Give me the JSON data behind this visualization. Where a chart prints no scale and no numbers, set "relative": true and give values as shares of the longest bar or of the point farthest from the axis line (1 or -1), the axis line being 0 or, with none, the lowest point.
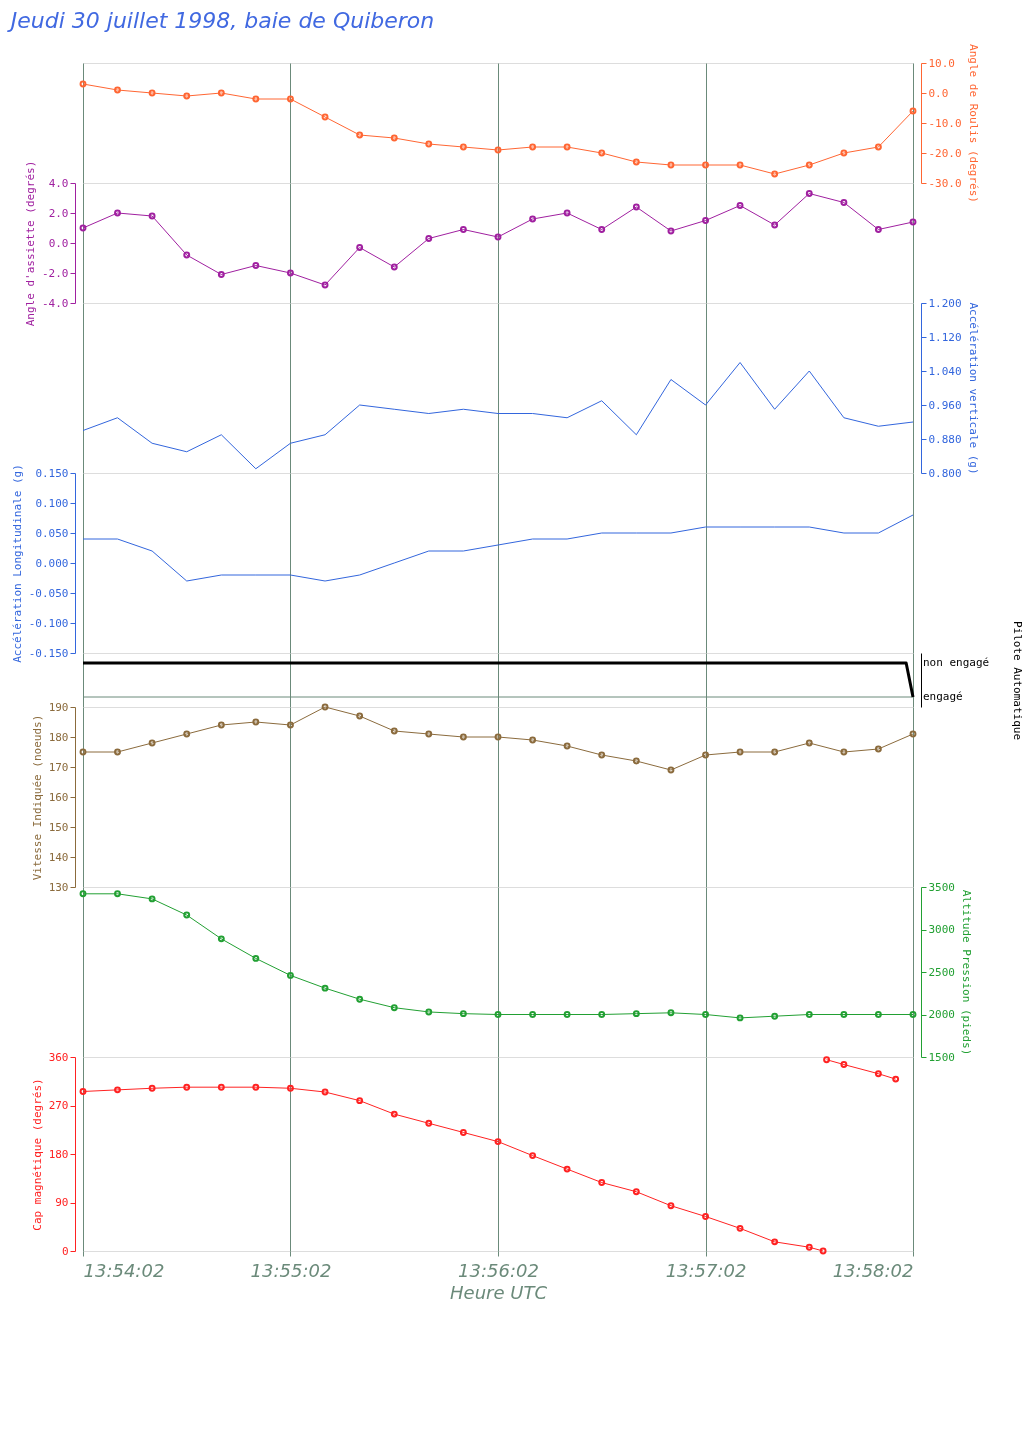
{
  "chart_data": [
    {
      "type": "line",
      "title": "Jeudi 30 juillet 1998, baie de Quiberon",
      "ylabel": "Angle de Roulis (degrés)",
      "marker": "circle",
      "grid": "x",
      "tick_labels": "y",
      "x": [
        13.90056,
        13.90333,
        13.90611,
        13.90889,
        13.91167,
        13.91444,
        13.91722,
        13.92,
        13.92278,
        13.92556,
        13.92833,
        13.93111,
        13.93389,
        13.93667,
        13.93944,
        13.94222,
        13.945,
        13.94778,
        13.95056,
        13.95333,
        13.95611,
        13.95889,
        13.96167,
        13.96444,
        13.96722
      ],
      "xlim": [
        13.90056,
        13.96722
      ],
      "xticks": [
        {
          "value": 13.90056,
          "label": null
        },
        {
          "value": 13.91722,
          "label": null
        },
        {
          "value": 13.93389,
          "label": null
        },
        {
          "value": 13.95056,
          "label": null
        },
        {
          "value": 13.96722,
          "label": null
        }
      ],
      "ylim": [
        -30,
        10
      ],
      "yticks": [
        {
          "value": 10,
          "label": "10.0"
        },
        {
          "value": 0,
          "label": "0.0"
        },
        {
          "value": -10,
          "label": "-10.0"
        },
        {
          "value": -20,
          "label": "-20.0"
        },
        {
          "value": -30,
          "label": "-30.0"
        }
      ],
      "series": [
        {
          "color": "#ff6633",
          "values": [
            3,
            1,
            0,
            -1,
            0,
            -2,
            -2,
            -8,
            -14,
            -15,
            -17,
            -18,
            -19,
            -18,
            -18,
            -20,
            -23,
            -24,
            -24,
            -24,
            -27,
            -24,
            -20,
            -18,
            -6
          ]
        }
      ]
    },
    {
      "type": "line",
      "ylabel": "Angle d'assiette (degrés)",
      "marker": "circle",
      "grid": "x",
      "tick_labels": "y",
      "x": [
        13.90056,
        13.90333,
        13.90611,
        13.90889,
        13.91167,
        13.91444,
        13.91722,
        13.92,
        13.92278,
        13.92556,
        13.92833,
        13.93111,
        13.93389,
        13.93667,
        13.93944,
        13.94222,
        13.945,
        13.94778,
        13.95056,
        13.95333,
        13.95611,
        13.95889,
        13.96167,
        13.96444,
        13.96722
      ],
      "xlim": [
        13.90056,
        13.96722
      ],
      "xticks": [
        {
          "value": 13.90056,
          "label": null
        },
        {
          "value": 13.91722,
          "label": null
        },
        {
          "value": 13.93389,
          "label": null
        },
        {
          "value": 13.95056,
          "label": null
        },
        {
          "value": 13.96722,
          "label": null
        }
      ],
      "ylim": [
        -4,
        4
      ],
      "yticks": [
        {
          "value": 4,
          "label": "4.0"
        },
        {
          "value": 2,
          "label": "2.0"
        },
        {
          "value": 0,
          "label": "0.0"
        },
        {
          "value": -2,
          "label": "-2.0"
        },
        {
          "value": -4,
          "label": "-4.0"
        }
      ],
      "series": [
        {
          "color": "#a020a0",
          "values": [
            1.0,
            2.0,
            1.8,
            -0.8,
            -2.1,
            -1.5,
            -2.0,
            -2.8,
            -0.3,
            -1.6,
            0.3,
            0.9,
            0.4,
            1.6,
            2.0,
            0.9,
            2.4,
            0.8,
            1.5,
            2.5,
            1.2,
            3.3,
            2.7,
            0.9,
            1.4
          ]
        }
      ]
    },
    {
      "type": "line",
      "ylabel": "Accélération verticale (g)",
      "grid": "x",
      "tick_labels": "y",
      "x": [
        13.90056,
        13.90333,
        13.90611,
        13.90889,
        13.91167,
        13.91444,
        13.91722,
        13.92,
        13.92278,
        13.92556,
        13.92833,
        13.93111,
        13.93389,
        13.93667,
        13.93944,
        13.94222,
        13.945,
        13.94778,
        13.95056,
        13.95333,
        13.95611,
        13.95889,
        13.96167,
        13.96444,
        13.96722
      ],
      "xlim": [
        13.90056,
        13.96722
      ],
      "xticks": [
        {
          "value": 13.90056,
          "label": null
        },
        {
          "value": 13.91722,
          "label": null
        },
        {
          "value": 13.93389,
          "label": null
        },
        {
          "value": 13.95056,
          "label": null
        },
        {
          "value": 13.96722,
          "label": null
        }
      ],
      "ylim": [
        0.8,
        1.2
      ],
      "yticks": [
        {
          "value": 1.2,
          "label": "1.200"
        },
        {
          "value": 1.12,
          "label": "1.120"
        },
        {
          "value": 1.04,
          "label": "1.040"
        },
        {
          "value": 0.96,
          "label": "0.960"
        },
        {
          "value": 0.88,
          "label": "0.880"
        },
        {
          "value": 0.8,
          "label": "0.800"
        }
      ],
      "series": [
        {
          "color": "#3366dd",
          "values": [
            0.9,
            0.93,
            0.87,
            0.85,
            0.89,
            0.81,
            0.87,
            0.89,
            0.96,
            0.95,
            0.94,
            0.95,
            0.94,
            0.94,
            0.93,
            0.97,
            0.89,
            1.02,
            0.96,
            1.06,
            0.95,
            1.04,
            0.93,
            0.91,
            0.92
          ]
        }
      ]
    },
    {
      "type": "line",
      "ylabel": "Accélération Longitudinale (g)",
      "grid": "x",
      "tick_labels": "y",
      "x": [
        13.90056,
        13.90333,
        13.90611,
        13.90889,
        13.91167,
        13.91444,
        13.91722,
        13.92,
        13.92278,
        13.92556,
        13.92833,
        13.93111,
        13.93389,
        13.93667,
        13.93944,
        13.94222,
        13.945,
        13.94778,
        13.95056,
        13.95333,
        13.95611,
        13.95889,
        13.96167,
        13.96444,
        13.96722
      ],
      "xlim": [
        13.90056,
        13.96722
      ],
      "xticks": [
        {
          "value": 13.90056,
          "label": null
        },
        {
          "value": 13.91722,
          "label": null
        },
        {
          "value": 13.93389,
          "label": null
        },
        {
          "value": 13.95056,
          "label": null
        },
        {
          "value": 13.96722,
          "label": null
        }
      ],
      "ylim": [
        -0.15,
        0.15
      ],
      "yticks": [
        {
          "value": 0.15,
          "label": "0.150"
        },
        {
          "value": 0.1,
          "label": "0.100"
        },
        {
          "value": 0.05,
          "label": "0.050"
        },
        {
          "value": 0,
          "label": "0.000"
        },
        {
          "value": -0.05,
          "label": "-0.050"
        },
        {
          "value": -0.1,
          "label": "-0.100"
        },
        {
          "value": -0.15,
          "label": "-0.150"
        }
      ],
      "series": [
        {
          "color": "#3366dd",
          "values": [
            0.04,
            0.04,
            0.02,
            -0.03,
            -0.02,
            -0.02,
            -0.02,
            -0.03,
            -0.02,
            0.0,
            0.02,
            0.02,
            0.03,
            0.04,
            0.04,
            0.05,
            0.05,
            0.05,
            0.06,
            0.06,
            0.06,
            0.06,
            0.05,
            0.05,
            0.08
          ]
        }
      ]
    },
    {
      "type": "line",
      "ylabel": "Pilote Automatique",
      "grid": "x",
      "tick_labels": false,
      "relative": true,
      "annotations": [
        "non engagé",
        "engagé"
      ],
      "x": [
        13.90056,
        13.96667,
        13.96722
      ],
      "xlim": [
        13.90056,
        13.96722
      ],
      "xticks": [
        {
          "value": 13.90056,
          "label": null
        },
        {
          "value": 13.91722,
          "label": null
        },
        {
          "value": 13.93389,
          "label": null
        },
        {
          "value": 13.95056,
          "label": null
        },
        {
          "value": 13.96722,
          "label": null
        }
      ],
      "series": [
        {
          "color": "#000000",
          "values": [
            1,
            1,
            0
          ]
        }
      ]
    },
    {
      "type": "line",
      "ylabel": "Vitesse Indiquée (noeuds)",
      "marker": "circle",
      "grid": "x",
      "tick_labels": "y",
      "x": [
        13.90056,
        13.90333,
        13.90611,
        13.90889,
        13.91167,
        13.91444,
        13.91722,
        13.92,
        13.92278,
        13.92556,
        13.92833,
        13.93111,
        13.93389,
        13.93667,
        13.93944,
        13.94222,
        13.945,
        13.94778,
        13.95056,
        13.95333,
        13.95611,
        13.95889,
        13.96167,
        13.96444,
        13.96722
      ],
      "xlim": [
        13.90056,
        13.96722
      ],
      "xticks": [
        {
          "value": 13.90056,
          "label": null
        },
        {
          "value": 13.91722,
          "label": null
        },
        {
          "value": 13.93389,
          "label": null
        },
        {
          "value": 13.95056,
          "label": null
        },
        {
          "value": 13.96722,
          "label": null
        }
      ],
      "ylim": [
        130,
        190
      ],
      "yticks": [
        190,
        180,
        170,
        160,
        150,
        140,
        130
      ],
      "series": [
        {
          "color": "#8b6b3d",
          "values": [
            175,
            175,
            178,
            181,
            184,
            185,
            184,
            190,
            187,
            182,
            181,
            180,
            180,
            179,
            177,
            174,
            172,
            169,
            174,
            175,
            175,
            178,
            175,
            176,
            181
          ]
        }
      ]
    },
    {
      "type": "line",
      "ylabel": "Altitude Pression (pieds)",
      "marker": "circle",
      "grid": "x",
      "tick_labels": "y",
      "x": [
        13.90056,
        13.90333,
        13.90611,
        13.90889,
        13.91167,
        13.91444,
        13.91722,
        13.92,
        13.92278,
        13.92556,
        13.92833,
        13.93111,
        13.93389,
        13.93667,
        13.93944,
        13.94222,
        13.945,
        13.94778,
        13.95056,
        13.95333,
        13.95611,
        13.95889,
        13.96167,
        13.96444,
        13.96722
      ],
      "xlim": [
        13.90056,
        13.96722
      ],
      "xticks": [
        {
          "value": 13.90056,
          "label": null
        },
        {
          "value": 13.91722,
          "label": null
        },
        {
          "value": 13.93389,
          "label": null
        },
        {
          "value": 13.95056,
          "label": null
        },
        {
          "value": 13.96722,
          "label": null
        }
      ],
      "ylim": [
        1500,
        3500
      ],
      "yticks": [
        3500,
        3000,
        2500,
        2000,
        1500
      ],
      "series": [
        {
          "color": "#22a033",
          "values": [
            3420,
            3420,
            3360,
            3170,
            2890,
            2660,
            2460,
            2310,
            2180,
            2080,
            2030,
            2010,
            2000,
            2000,
            2000,
            2000,
            2010,
            2020,
            2000,
            1960,
            1980,
            2000,
            2000,
            2000,
            2000
          ]
        }
      ]
    },
    {
      "type": "line",
      "ylabel": "Cap magnétique (degrés)",
      "xlabel": "Heure UTC",
      "marker": "circle",
      "grid": "x",
      "x": [
        13.90056,
        13.90333,
        13.90611,
        13.90889,
        13.91167,
        13.91444,
        13.91722,
        13.92,
        13.92278,
        13.92556,
        13.92833,
        13.93111,
        13.93389,
        13.93667,
        13.93944,
        13.94222,
        13.945,
        13.94778,
        13.95056,
        13.95333,
        13.95611,
        13.95889,
        13.96
      ],
      "xlim": [
        13.90056,
        13.96722
      ],
      "xticks": [
        {
          "value": 13.90056,
          "label": "13:54:02"
        },
        {
          "value": 13.91722,
          "label": "13:55:02"
        },
        {
          "value": 13.93389,
          "label": "13:56:02"
        },
        {
          "value": 13.95056,
          "label": "13:57:02"
        },
        {
          "value": 13.96722,
          "label": "13:58:02"
        }
      ],
      "ylim": [
        0,
        360
      ],
      "yticks": [
        360,
        270,
        180,
        90,
        0
      ],
      "series": [
        {
          "color": "#ff2222",
          "values": [
            296,
            299,
            302,
            304,
            304,
            304,
            302,
            295,
            279,
            254,
            237,
            220,
            203,
            177,
            152,
            127,
            110,
            84,
            64,
            42,
            17,
            7,
            0
          ]
        },
        {
          "color": "#ff2222",
          "x": [
            13.96028,
            13.96167,
            13.96444,
            13.96583
          ],
          "values": [
            355,
            346,
            329,
            319
          ]
        }
      ]
    }
  ]
}
